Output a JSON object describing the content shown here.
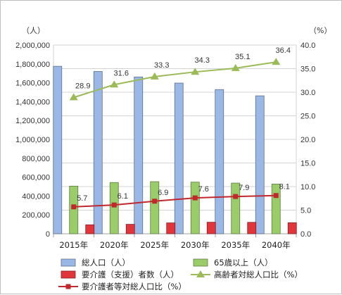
{
  "chart_data": {
    "type": "bar",
    "categories": [
      "2015年",
      "2020年",
      "2025年",
      "2030年",
      "2035年",
      "2040年"
    ],
    "y_left": {
      "unit": "（人）",
      "ylim": [
        0,
        2000000
      ],
      "ticks": [
        "0",
        "200,000",
        "400,000",
        "600,000",
        "800,000",
        "1,000,000",
        "1,200,000",
        "1,400,000",
        "1,600,000",
        "1,800,000",
        "2,000,000"
      ]
    },
    "y_right": {
      "unit": "（%）",
      "ylim": [
        0,
        40
      ],
      "ticks": [
        "0.0",
        "5.0",
        "10.0",
        "15.0",
        "20.0",
        "25.0",
        "30.0",
        "35.0",
        "40.0"
      ]
    },
    "series": [
      {
        "name": "総人口（人）",
        "kind": "bar",
        "axis": "left",
        "color": "#9bb7e6",
        "values": [
          1775000,
          1720000,
          1662000,
          1597000,
          1528000,
          1462000
        ]
      },
      {
        "name": "65歳以上（人）",
        "kind": "bar",
        "axis": "left",
        "color": "#9acd6a",
        "values": [
          505000,
          543000,
          552000,
          547000,
          537000,
          527000
        ]
      },
      {
        "name": "要介護（支援）者数（人）",
        "kind": "bar",
        "axis": "left",
        "color": "#e0353a",
        "values": [
          95000,
          100000,
          115000,
          122000,
          121000,
          117000
        ]
      },
      {
        "name": "高齢者対総人口比（%）",
        "kind": "line",
        "axis": "right",
        "color": "#9bbb59",
        "marker": "triangle",
        "values": [
          28.9,
          31.6,
          33.3,
          34.3,
          35.1,
          36.4
        ],
        "labels": [
          "28.9",
          "31.6",
          "33.3",
          "34.3",
          "35.1",
          "36.4"
        ]
      },
      {
        "name": "要介護者等対総人口比（%）",
        "kind": "line",
        "axis": "right",
        "color": "#c0282d",
        "marker": "square",
        "values": [
          5.7,
          6.1,
          6.9,
          7.6,
          7.9,
          8.1
        ],
        "labels": [
          "5.7",
          "6.1",
          "6.9",
          "7.6",
          "7.9",
          "8.1"
        ]
      }
    ],
    "grid": true,
    "legend_placement": "bottom"
  }
}
